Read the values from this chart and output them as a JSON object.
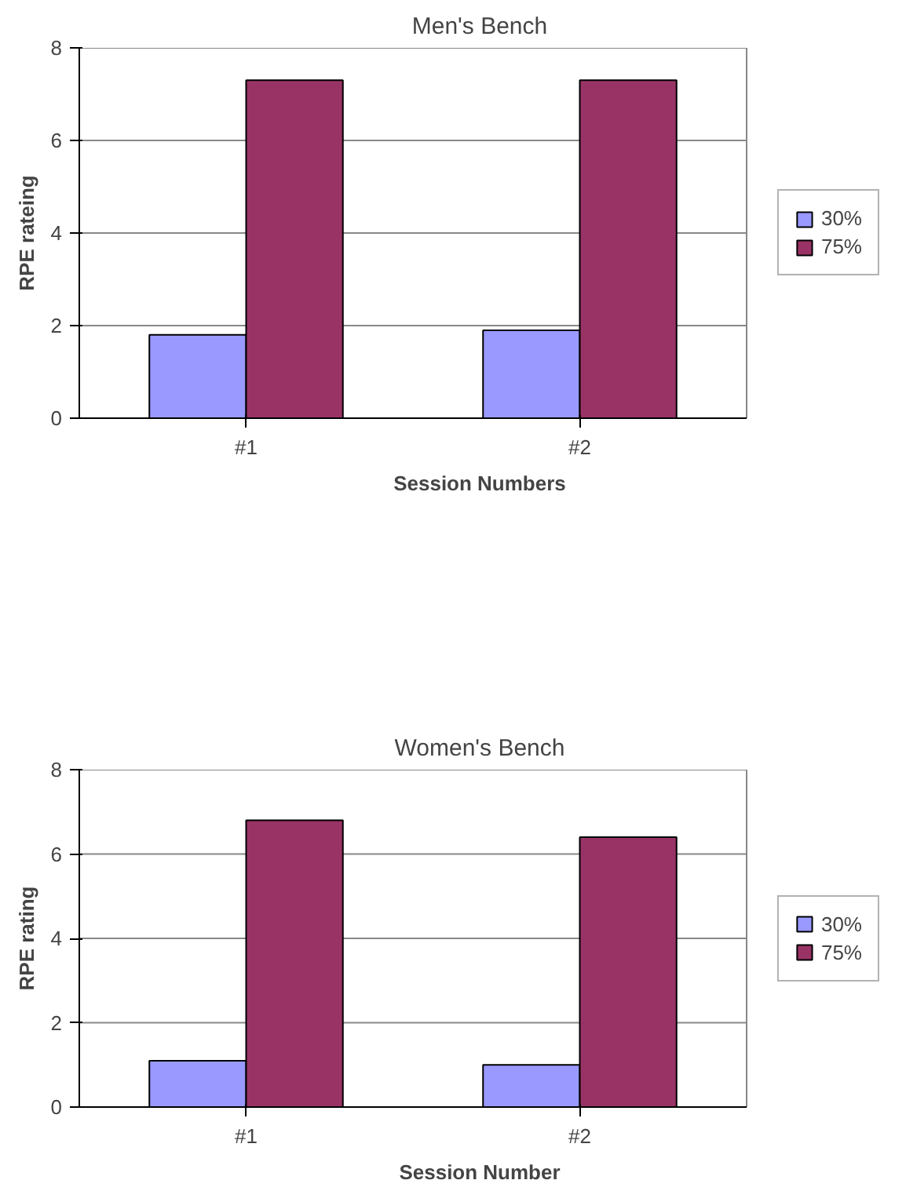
{
  "chart_data": [
    {
      "type": "bar",
      "title": "Men's Bench",
      "xlabel": "Session Numbers",
      "ylabel": "RPE rateing",
      "categories": [
        "#1",
        "#2"
      ],
      "series": [
        {
          "name": "30%",
          "color": "#9999ff",
          "values": [
            1.8,
            1.9
          ]
        },
        {
          "name": "75%",
          "color": "#993366",
          "values": [
            7.3,
            7.3
          ]
        }
      ],
      "ylim": [
        0,
        8
      ],
      "yticks": [
        0,
        2,
        4,
        6,
        8
      ],
      "grid": "y",
      "legend": "right"
    },
    {
      "type": "bar",
      "title": "Women's Bench",
      "xlabel": "Session Number",
      "ylabel": "RPE rating",
      "categories": [
        "#1",
        "#2"
      ],
      "series": [
        {
          "name": "30%",
          "color": "#9999ff",
          "values": [
            1.1,
            1.0
          ]
        },
        {
          "name": "75%",
          "color": "#993366",
          "values": [
            6.8,
            6.4
          ]
        }
      ],
      "ylim": [
        0,
        8
      ],
      "yticks": [
        0,
        2,
        4,
        6,
        8
      ],
      "grid": "y",
      "legend": "right"
    }
  ]
}
